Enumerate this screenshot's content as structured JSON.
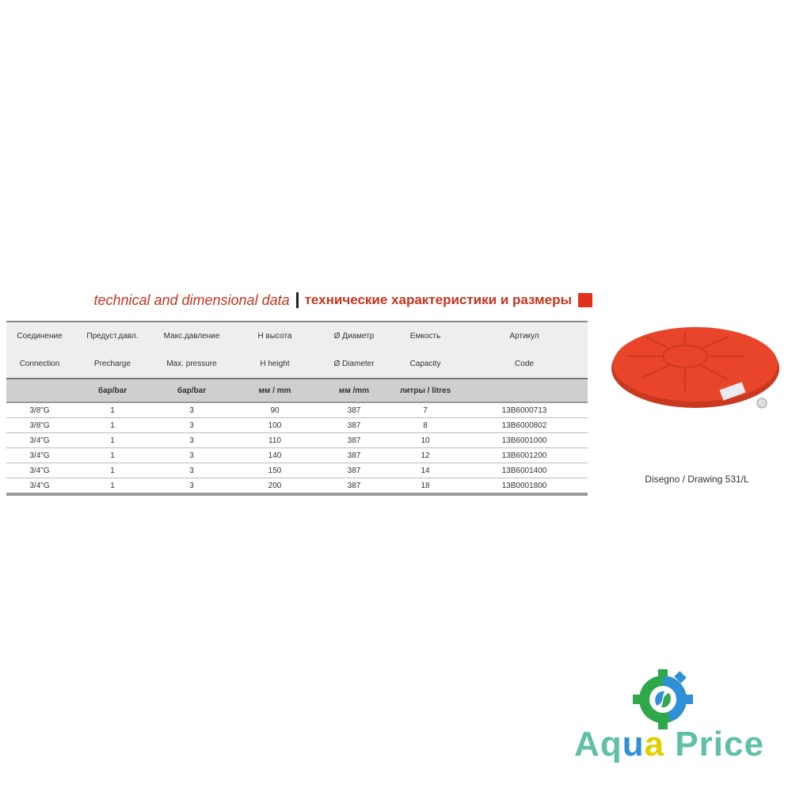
{
  "title": {
    "ru": "технические характеристики и размеры",
    "en": "technical and dimensional data"
  },
  "table": {
    "headers_ru": [
      "Артикул",
      "Емкость",
      "Ø Диаметр",
      "H высота",
      "Макс.давление",
      "Предуст.давл.",
      "Соединение"
    ],
    "headers_en": [
      "Code",
      "Capacity",
      "Ø Diameter",
      "H height",
      "Max. pressure",
      "Precharge",
      "Connection"
    ],
    "units": [
      "",
      "литры / litres",
      "мм /mm",
      "мм / mm",
      "бар/bar",
      "бар/bar",
      ""
    ],
    "rows": [
      [
        "13B6000713",
        "7",
        "387",
        "90",
        "3",
        "1",
        "3/8\"G"
      ],
      [
        "13B6000802",
        "8",
        "387",
        "100",
        "3",
        "1",
        "3/8\"G"
      ],
      [
        "13B6001000",
        "10",
        "387",
        "110",
        "3",
        "1",
        "3/4\"G"
      ],
      [
        "13B6001200",
        "12",
        "387",
        "140",
        "3",
        "1",
        "3/4\"G"
      ],
      [
        "13B6001400",
        "14",
        "387",
        "150",
        "3",
        "1",
        "3/4\"G"
      ],
      [
        "13B0001800",
        "18",
        "387",
        "200",
        "3",
        "1",
        "3/4\"G"
      ]
    ]
  },
  "product": {
    "caption": "Disegno / Drawing 531/L",
    "color": "#e8452a"
  },
  "logo": {
    "text_a": "Aq",
    "text_u": "u",
    "text_a2": "a",
    "text_rest": " Price",
    "colors": {
      "green": "#2ea84a",
      "blue": "#2f8fd8",
      "yellow": "#f2e21a",
      "teal": "#5fbfa8"
    }
  }
}
